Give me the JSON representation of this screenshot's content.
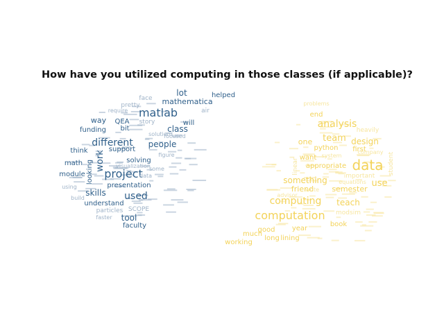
{
  "title": "How have you utilized computing in those classes (if applicable)?",
  "colors": {
    "left_cloud": "#2f5f8a",
    "left_cloud_light": "#9fb3c8",
    "right_cloud": "#f3d35a",
    "right_cloud_light": "#f7e6a0"
  },
  "left_cloud_words": [
    "lot",
    "mathematica",
    "matlab",
    "air",
    "helped",
    "face",
    "pretty",
    "QEA",
    "story",
    "will",
    "way",
    "class",
    "funding",
    "bit",
    "solutions",
    "people",
    "different",
    "focused",
    "work",
    "support",
    "think",
    "solving",
    "math",
    "project",
    "looking",
    "module",
    "presentation",
    "using",
    "used",
    "skills",
    "understand",
    "particles",
    "SCOPE",
    "tool",
    "faculty",
    "faster",
    "build",
    "require",
    "figure",
    "visualization",
    "some",
    "data"
  ],
  "right_cloud_words": [
    "end",
    "analysis",
    "heavily",
    "team",
    "design",
    "one",
    "python",
    "first",
    "want",
    "data",
    "appropriate",
    "something",
    "important",
    "use",
    "friend",
    "semester",
    "computing",
    "teach",
    "computation",
    "book",
    "good",
    "year",
    "much",
    "working",
    "long",
    "lining",
    "student",
    "linear",
    "problems",
    "system",
    "write",
    "advisor",
    "modsim",
    "company",
    "equations"
  ]
}
